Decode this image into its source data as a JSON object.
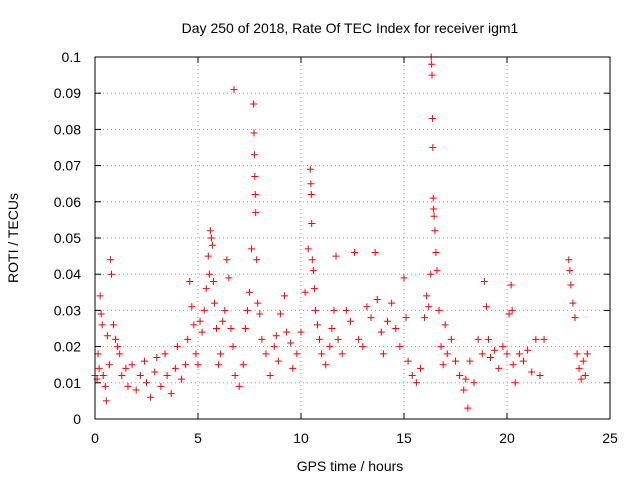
{
  "chart_data": {
    "type": "scatter",
    "title": "Day 250 of 2018, Rate Of TEC Index for receiver igm1",
    "xlabel": "GPS time / hours",
    "ylabel": "ROTI / TECUs",
    "xlim": [
      0,
      25
    ],
    "ylim": [
      0,
      0.1
    ],
    "x_ticks": [
      0,
      5,
      10,
      15,
      20,
      25
    ],
    "x_tick_labels": [
      "0",
      "5",
      "10",
      "15",
      "20",
      "25"
    ],
    "y_ticks": [
      0,
      0.01,
      0.02,
      0.03,
      0.04,
      0.05,
      0.06,
      0.07,
      0.08,
      0.09,
      0.1
    ],
    "y_tick_labels": [
      "0",
      "0.01",
      "0.02",
      "0.03",
      "0.04",
      "0.05",
      "0.06",
      "0.07",
      "0.08",
      "0.09",
      "0.1"
    ],
    "grid": true,
    "legend": "none",
    "marker": "+",
    "color": "#ff0000",
    "series": [
      {
        "name": "ROTI",
        "points": [
          [
            0.0,
            0.012
          ],
          [
            0.1,
            0.011
          ],
          [
            0.15,
            0.018
          ],
          [
            0.2,
            0.014
          ],
          [
            0.25,
            0.034
          ],
          [
            0.3,
            0.029
          ],
          [
            0.35,
            0.026
          ],
          [
            0.4,
            0.012
          ],
          [
            0.5,
            0.009
          ],
          [
            0.55,
            0.005
          ],
          [
            0.6,
            0.023
          ],
          [
            0.7,
            0.015
          ],
          [
            0.75,
            0.044
          ],
          [
            0.8,
            0.04
          ],
          [
            0.9,
            0.026
          ],
          [
            1.0,
            0.022
          ],
          [
            1.1,
            0.02
          ],
          [
            1.2,
            0.018
          ],
          [
            1.3,
            0.012
          ],
          [
            1.5,
            0.014
          ],
          [
            1.6,
            0.009
          ],
          [
            1.8,
            0.015
          ],
          [
            2.0,
            0.008
          ],
          [
            2.2,
            0.012
          ],
          [
            2.4,
            0.016
          ],
          [
            2.5,
            0.01
          ],
          [
            2.7,
            0.006
          ],
          [
            2.9,
            0.013
          ],
          [
            3.0,
            0.017
          ],
          [
            3.2,
            0.009
          ],
          [
            3.4,
            0.018
          ],
          [
            3.5,
            0.012
          ],
          [
            3.7,
            0.007
          ],
          [
            3.9,
            0.014
          ],
          [
            4.0,
            0.02
          ],
          [
            4.2,
            0.011
          ],
          [
            4.4,
            0.015
          ],
          [
            4.5,
            0.022
          ],
          [
            4.6,
            0.038
          ],
          [
            4.7,
            0.031
          ],
          [
            4.8,
            0.026
          ],
          [
            4.9,
            0.018
          ],
          [
            5.0,
            0.015
          ],
          [
            5.1,
            0.027
          ],
          [
            5.2,
            0.024
          ],
          [
            5.3,
            0.03
          ],
          [
            5.4,
            0.036
          ],
          [
            5.5,
            0.045
          ],
          [
            5.55,
            0.04
          ],
          [
            5.6,
            0.052
          ],
          [
            5.65,
            0.05
          ],
          [
            5.7,
            0.048
          ],
          [
            5.75,
            0.038
          ],
          [
            5.8,
            0.032
          ],
          [
            5.9,
            0.025
          ],
          [
            6.0,
            0.015
          ],
          [
            6.1,
            0.018
          ],
          [
            6.2,
            0.027
          ],
          [
            6.3,
            0.03
          ],
          [
            6.4,
            0.044
          ],
          [
            6.5,
            0.039
          ],
          [
            6.6,
            0.025
          ],
          [
            6.7,
            0.02
          ],
          [
            6.75,
            0.091
          ],
          [
            6.8,
            0.012
          ],
          [
            7.0,
            0.009
          ],
          [
            7.2,
            0.015
          ],
          [
            7.3,
            0.025
          ],
          [
            7.4,
            0.03
          ],
          [
            7.5,
            0.035
          ],
          [
            7.6,
            0.047
          ],
          [
            7.7,
            0.087
          ],
          [
            7.72,
            0.079
          ],
          [
            7.74,
            0.073
          ],
          [
            7.76,
            0.067
          ],
          [
            7.78,
            0.062
          ],
          [
            7.8,
            0.057
          ],
          [
            7.85,
            0.044
          ],
          [
            7.9,
            0.032
          ],
          [
            8.0,
            0.029
          ],
          [
            8.1,
            0.022
          ],
          [
            8.3,
            0.018
          ],
          [
            8.5,
            0.012
          ],
          [
            8.7,
            0.02
          ],
          [
            8.8,
            0.023
          ],
          [
            8.9,
            0.016
          ],
          [
            9.0,
            0.029
          ],
          [
            9.2,
            0.034
          ],
          [
            9.3,
            0.024
          ],
          [
            9.5,
            0.021
          ],
          [
            9.6,
            0.014
          ],
          [
            9.8,
            0.018
          ],
          [
            10.0,
            0.024
          ],
          [
            10.2,
            0.035
          ],
          [
            10.35,
            0.047
          ],
          [
            10.45,
            0.069
          ],
          [
            10.48,
            0.065
          ],
          [
            10.5,
            0.062
          ],
          [
            10.52,
            0.054
          ],
          [
            10.55,
            0.044
          ],
          [
            10.6,
            0.041
          ],
          [
            10.65,
            0.036
          ],
          [
            10.7,
            0.03
          ],
          [
            10.8,
            0.026
          ],
          [
            10.9,
            0.022
          ],
          [
            11.0,
            0.018
          ],
          [
            11.2,
            0.015
          ],
          [
            11.4,
            0.02
          ],
          [
            11.5,
            0.025
          ],
          [
            11.6,
            0.03
          ],
          [
            11.7,
            0.045
          ],
          [
            11.8,
            0.022
          ],
          [
            12.0,
            0.018
          ],
          [
            12.2,
            0.03
          ],
          [
            12.4,
            0.027
          ],
          [
            12.6,
            0.046
          ],
          [
            12.8,
            0.022
          ],
          [
            13.0,
            0.02
          ],
          [
            13.2,
            0.031
          ],
          [
            13.4,
            0.028
          ],
          [
            13.6,
            0.046
          ],
          [
            13.7,
            0.033
          ],
          [
            13.9,
            0.024
          ],
          [
            14.0,
            0.018
          ],
          [
            14.2,
            0.027
          ],
          [
            14.4,
            0.032
          ],
          [
            14.6,
            0.025
          ],
          [
            14.8,
            0.02
          ],
          [
            15.0,
            0.039
          ],
          [
            15.1,
            0.028
          ],
          [
            15.2,
            0.016
          ],
          [
            15.4,
            0.012
          ],
          [
            15.6,
            0.01
          ],
          [
            15.8,
            0.014
          ],
          [
            16.0,
            0.028
          ],
          [
            16.1,
            0.034
          ],
          [
            16.2,
            0.031
          ],
          [
            16.3,
            0.04
          ],
          [
            16.32,
            0.1
          ],
          [
            16.34,
            0.098
          ],
          [
            16.36,
            0.095
          ],
          [
            16.38,
            0.083
          ],
          [
            16.4,
            0.075
          ],
          [
            16.42,
            0.061
          ],
          [
            16.44,
            0.058
          ],
          [
            16.46,
            0.056
          ],
          [
            16.5,
            0.052
          ],
          [
            16.55,
            0.046
          ],
          [
            16.6,
            0.041
          ],
          [
            16.7,
            0.03
          ],
          [
            16.8,
            0.02
          ],
          [
            16.9,
            0.015
          ],
          [
            17.0,
            0.026
          ],
          [
            17.1,
            0.018
          ],
          [
            17.3,
            0.022
          ],
          [
            17.5,
            0.016
          ],
          [
            17.7,
            0.012
          ],
          [
            17.9,
            0.008
          ],
          [
            18.0,
            0.011
          ],
          [
            18.1,
            0.003
          ],
          [
            18.2,
            0.016
          ],
          [
            18.4,
            0.01
          ],
          [
            18.6,
            0.022
          ],
          [
            18.8,
            0.018
          ],
          [
            18.9,
            0.038
          ],
          [
            19.0,
            0.031
          ],
          [
            19.1,
            0.022
          ],
          [
            19.2,
            0.017
          ],
          [
            19.4,
            0.019
          ],
          [
            19.6,
            0.014
          ],
          [
            19.8,
            0.02
          ],
          [
            20.0,
            0.018
          ],
          [
            20.1,
            0.029
          ],
          [
            20.2,
            0.037
          ],
          [
            20.25,
            0.03
          ],
          [
            20.3,
            0.015
          ],
          [
            20.4,
            0.01
          ],
          [
            20.6,
            0.018
          ],
          [
            20.8,
            0.016
          ],
          [
            21.0,
            0.019
          ],
          [
            21.2,
            0.013
          ],
          [
            21.4,
            0.022
          ],
          [
            21.6,
            0.012
          ],
          [
            21.8,
            0.022
          ],
          [
            23.0,
            0.044
          ],
          [
            23.05,
            0.041
          ],
          [
            23.1,
            0.037
          ],
          [
            23.2,
            0.032
          ],
          [
            23.3,
            0.028
          ],
          [
            23.4,
            0.018
          ],
          [
            23.5,
            0.014
          ],
          [
            23.6,
            0.011
          ],
          [
            23.7,
            0.016
          ],
          [
            23.8,
            0.012
          ],
          [
            23.9,
            0.018
          ]
        ]
      }
    ]
  }
}
